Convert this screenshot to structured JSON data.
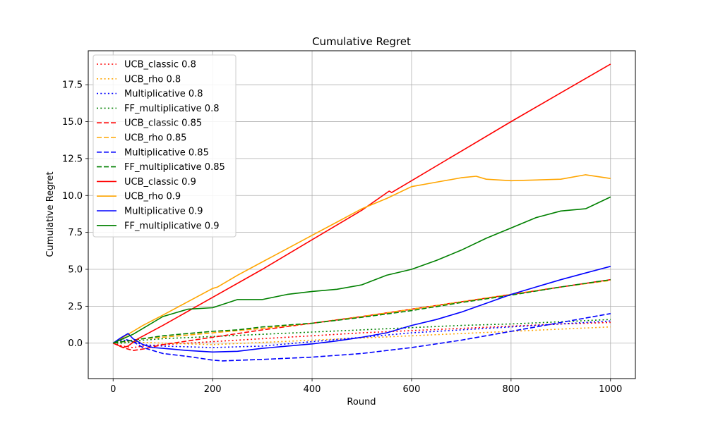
{
  "chart_data": {
    "type": "line",
    "title": "Cumulative Regret",
    "xlabel": "Round",
    "ylabel": "Cumulative Regret",
    "xlim": [
      -50,
      1050
    ],
    "ylim": [
      -2.4,
      19.8
    ],
    "xticks": [
      0,
      200,
      400,
      600,
      800,
      1000
    ],
    "yticks": [
      0.0,
      2.5,
      5.0,
      7.5,
      10.0,
      12.5,
      15.0,
      17.5
    ],
    "xtick_labels": [
      "0",
      "200",
      "400",
      "600",
      "800",
      "1000"
    ],
    "ytick_labels": [
      "0.0",
      "2.5",
      "5.0",
      "7.5",
      "10.0",
      "12.5",
      "15.0",
      "17.5"
    ],
    "grid": true,
    "legend_position": "top-left",
    "series": [
      {
        "name": "UCB_classic 0.8",
        "color": "#ff0000",
        "style": "dotted",
        "x": [
          0,
          20,
          40,
          60,
          100,
          200,
          300,
          400,
          500,
          600,
          700,
          800,
          900,
          1000
        ],
        "y": [
          0,
          -0.2,
          -0.3,
          -0.2,
          -0.1,
          0.1,
          0.3,
          0.5,
          0.7,
          0.85,
          1.0,
          1.15,
          1.3,
          1.4
        ]
      },
      {
        "name": "UCB_rho 0.8",
        "color": "#ffa500",
        "style": "dotted",
        "x": [
          0,
          20,
          40,
          60,
          100,
          200,
          300,
          400,
          500,
          600,
          700,
          800,
          900,
          1000
        ],
        "y": [
          0,
          0.1,
          0.1,
          0.05,
          0.0,
          -0.1,
          0.05,
          0.2,
          0.35,
          0.5,
          0.65,
          0.8,
          0.95,
          1.1
        ]
      },
      {
        "name": "Multiplicative 0.8",
        "color": "#0000ff",
        "style": "dotted",
        "x": [
          0,
          20,
          40,
          60,
          100,
          200,
          300,
          400,
          500,
          600,
          700,
          800,
          900,
          1000
        ],
        "y": [
          0,
          0.2,
          0.1,
          -0.1,
          -0.2,
          -0.3,
          -0.2,
          0.1,
          0.4,
          0.7,
          0.9,
          1.1,
          1.3,
          1.5
        ]
      },
      {
        "name": "FF_multiplicative 0.8",
        "color": "#008000",
        "style": "dotted",
        "x": [
          0,
          20,
          40,
          60,
          100,
          200,
          300,
          400,
          500,
          600,
          700,
          800,
          900,
          1000
        ],
        "y": [
          0,
          0.0,
          0.1,
          0.2,
          0.3,
          0.45,
          0.6,
          0.75,
          0.9,
          1.05,
          1.2,
          1.3,
          1.45,
          1.6
        ]
      },
      {
        "name": "UCB_classic 0.85",
        "color": "#ff0000",
        "style": "dashed",
        "x": [
          0,
          20,
          40,
          60,
          100,
          200,
          300,
          400,
          500,
          600,
          700,
          800,
          900,
          1000
        ],
        "y": [
          0,
          -0.3,
          -0.5,
          -0.4,
          -0.1,
          0.4,
          0.9,
          1.35,
          1.8,
          2.3,
          2.8,
          3.3,
          3.8,
          4.3
        ]
      },
      {
        "name": "UCB_rho 0.85",
        "color": "#ffa500",
        "style": "dashed",
        "x": [
          0,
          20,
          40,
          60,
          100,
          200,
          300,
          400,
          500,
          600,
          700,
          800,
          900,
          1000
        ],
        "y": [
          0,
          0.1,
          0.2,
          0.3,
          0.4,
          0.7,
          1.0,
          1.35,
          1.8,
          2.3,
          2.8,
          3.3,
          3.8,
          4.25
        ]
      },
      {
        "name": "Multiplicative 0.85",
        "color": "#0000ff",
        "style": "dashed",
        "x": [
          0,
          20,
          40,
          60,
          80,
          100,
          150,
          200,
          220,
          300,
          400,
          500,
          600,
          700,
          800,
          900,
          1000
        ],
        "y": [
          0,
          0.3,
          0.1,
          -0.3,
          -0.5,
          -0.7,
          -0.9,
          -1.15,
          -1.2,
          -1.1,
          -0.95,
          -0.7,
          -0.3,
          0.2,
          0.8,
          1.4,
          2.0
        ]
      },
      {
        "name": "FF_multiplicative 0.85",
        "color": "#008000",
        "style": "dashed",
        "x": [
          0,
          20,
          40,
          60,
          100,
          150,
          200,
          250,
          300,
          400,
          500,
          600,
          700,
          800,
          900,
          1000
        ],
        "y": [
          0,
          0.1,
          0.2,
          0.3,
          0.5,
          0.65,
          0.8,
          0.9,
          1.1,
          1.35,
          1.75,
          2.2,
          2.75,
          3.25,
          3.8,
          4.3
        ]
      },
      {
        "name": "UCB_classic 0.9",
        "color": "#ff0000",
        "style": "solid",
        "x": [
          0,
          20,
          30,
          50,
          100,
          200,
          300,
          400,
          500,
          555,
          560,
          600,
          700,
          800,
          900,
          1000
        ],
        "y": [
          0,
          -0.3,
          -0.2,
          0.3,
          1.2,
          3.1,
          5.0,
          7.0,
          9.0,
          10.3,
          10.2,
          11.0,
          13.0,
          15.0,
          16.95,
          18.9
        ]
      },
      {
        "name": "UCB_rho 0.9",
        "color": "#ffa500",
        "style": "solid",
        "x": [
          0,
          20,
          40,
          60,
          100,
          150,
          200,
          210,
          250,
          300,
          350,
          400,
          450,
          500,
          550,
          600,
          650,
          700,
          730,
          750,
          800,
          850,
          900,
          950,
          1000
        ],
        "y": [
          0,
          0.4,
          0.8,
          1.2,
          1.9,
          2.8,
          3.7,
          3.8,
          4.6,
          5.5,
          6.4,
          7.3,
          8.2,
          9.1,
          9.8,
          10.6,
          10.9,
          11.2,
          11.3,
          11.1,
          11.0,
          11.05,
          11.1,
          11.4,
          11.15
        ]
      },
      {
        "name": "Multiplicative 0.9",
        "color": "#0000ff",
        "style": "solid",
        "x": [
          0,
          15,
          30,
          40,
          60,
          80,
          100,
          150,
          200,
          250,
          300,
          350,
          400,
          450,
          500,
          550,
          600,
          650,
          700,
          750,
          800,
          850,
          900,
          950,
          1000
        ],
        "y": [
          0,
          0.35,
          0.65,
          0.3,
          -0.1,
          -0.3,
          -0.35,
          -0.5,
          -0.6,
          -0.55,
          -0.35,
          -0.2,
          -0.05,
          0.15,
          0.4,
          0.7,
          1.2,
          1.6,
          2.1,
          2.7,
          3.3,
          3.8,
          4.3,
          4.75,
          5.2
        ]
      },
      {
        "name": "FF_multiplicative 0.9",
        "color": "#008000",
        "style": "solid",
        "x": [
          0,
          20,
          40,
          60,
          100,
          150,
          200,
          250,
          300,
          350,
          400,
          450,
          500,
          550,
          600,
          650,
          700,
          750,
          800,
          850,
          900,
          950,
          1000
        ],
        "y": [
          0,
          0.3,
          0.6,
          1.0,
          1.8,
          2.3,
          2.4,
          2.95,
          2.95,
          3.3,
          3.5,
          3.65,
          3.95,
          4.6,
          5.0,
          5.6,
          6.3,
          7.1,
          7.8,
          8.5,
          8.95,
          9.1,
          9.9
        ]
      }
    ]
  }
}
